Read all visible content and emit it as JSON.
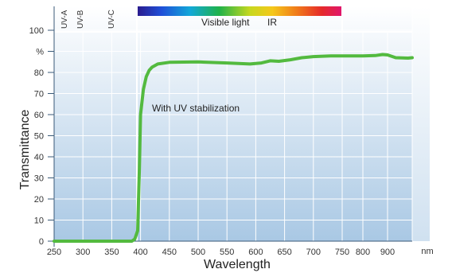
{
  "colors": {
    "plot_gradient_top": "#ffffff",
    "plot_gradient_bottom": "#a9c8e4",
    "grid": "#ffffff",
    "curve": "#53ba3f",
    "axis": "#3a5a78"
  },
  "chart_data": {
    "type": "line",
    "xlabel": "Wavelength",
    "ylabel": "Transmittance",
    "x_unit": "nm",
    "y_unit": "%",
    "x_ticks": [
      "250",
      "300",
      "350",
      "400",
      "450",
      "500",
      "550",
      "600",
      "650",
      "700",
      "750",
      "800",
      "900"
    ],
    "y_ticks": [
      "0",
      "10",
      "20",
      "30",
      "40",
      "50",
      "60",
      "70",
      "80",
      "%",
      "100"
    ],
    "band_labels": [
      "UV-A",
      "UV-B",
      "UV-C"
    ],
    "header_labels": [
      "Visible light",
      "IR"
    ],
    "annotation": "With UV stabilization",
    "grid": true,
    "series": [
      {
        "name": "With UV stabilization",
        "points": [
          [
            250,
            0
          ],
          [
            300,
            0
          ],
          [
            350,
            0
          ],
          [
            385,
            0
          ],
          [
            390,
            1
          ],
          [
            395,
            5
          ],
          [
            398,
            35
          ],
          [
            400,
            60
          ],
          [
            405,
            72
          ],
          [
            410,
            78
          ],
          [
            415,
            81
          ],
          [
            420,
            82.5
          ],
          [
            430,
            84
          ],
          [
            450,
            84.8
          ],
          [
            500,
            85
          ],
          [
            550,
            84.5
          ],
          [
            590,
            84
          ],
          [
            610,
            84.5
          ],
          [
            625,
            85.5
          ],
          [
            640,
            85.3
          ],
          [
            660,
            86
          ],
          [
            680,
            87
          ],
          [
            700,
            87.5
          ],
          [
            730,
            87.8
          ],
          [
            760,
            87.8
          ],
          [
            800,
            87.8
          ],
          [
            850,
            88
          ],
          [
            880,
            88.5
          ],
          [
            900,
            88.3
          ],
          [
            920,
            87
          ],
          [
            950,
            86.8
          ],
          [
            960,
            87
          ]
        ]
      }
    ]
  }
}
